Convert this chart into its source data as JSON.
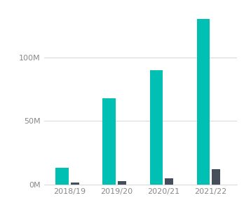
{
  "categories": [
    "2018/19",
    "2019/20",
    "2020/21",
    "2021/22"
  ],
  "aws_values": [
    13,
    68,
    90,
    130
  ],
  "other_values": [
    1.5,
    2.5,
    5,
    12
  ],
  "aws_color": "#00BFB3",
  "other_color": "#454F5B",
  "background_color": "#ffffff",
  "gridline_color": "#d0d0d0",
  "tick_label_color": "#888888",
  "ytick_labels": [
    "0M",
    "50M",
    "100M"
  ],
  "ytick_values": [
    0,
    50,
    100
  ],
  "ylim": [
    0,
    140
  ],
  "aws_bar_width": 0.28,
  "other_bar_width": 0.18,
  "bar_gap": 0.04,
  "tick_fontsize": 8.0
}
